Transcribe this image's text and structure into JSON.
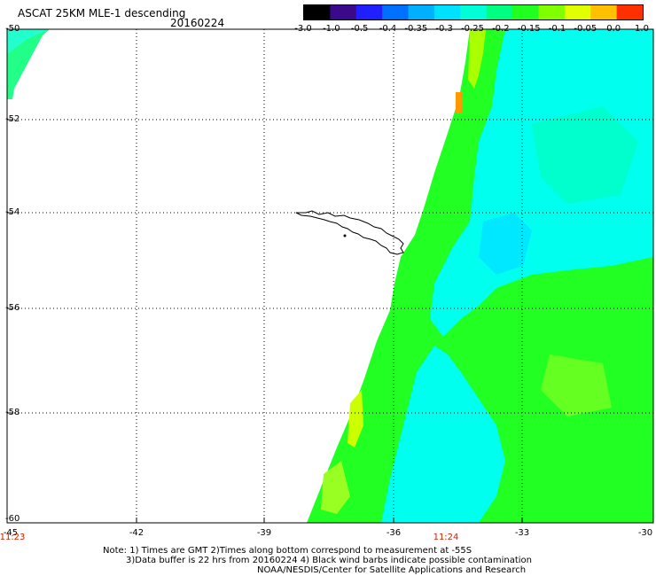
{
  "header": {
    "title": "ASCAT 25KM MLE-1 descending",
    "date": "20160224"
  },
  "colorbar": {
    "labels": [
      "-3.0",
      "-1.0",
      "-0.5",
      "-0.4",
      "-0.35",
      "-0.3",
      "-0.25",
      "-0.2",
      "-0.15",
      "-0.1",
      "-0.05",
      "0.0",
      "1.0"
    ],
    "colors": [
      "#000000",
      "#3a0a8a",
      "#2020ff",
      "#0070ff",
      "#00b0ff",
      "#00e0ff",
      "#00ffd8",
      "#00ff80",
      "#20ff20",
      "#80ff00",
      "#e0ff00",
      "#ffc000",
      "#ff3000"
    ]
  },
  "axes": {
    "y_labels": [
      "-50",
      "-52",
      "-54",
      "-56",
      "-58",
      "-60"
    ],
    "x_labels": [
      "-45",
      "-42",
      "-39",
      "-36",
      "-33",
      "-30"
    ],
    "time_labels": [
      "11:23",
      "11:24"
    ]
  },
  "notes": {
    "line1": "Note: 1) Times are GMT 2)Times along bottom correspond to measurement at -55S",
    "line2": "3)Data buffer is 22 hrs from 20160224 4) Black wind barbs indicate possible contamination",
    "line3": "NOAA/NESDIS/Center for Satellite Applications and Research"
  },
  "colors": {
    "cyan": "#00ffee",
    "green": "#22ff22",
    "yellow_green": "#aaff00",
    "orange": "#ff9900",
    "land_outline": "#000000"
  }
}
